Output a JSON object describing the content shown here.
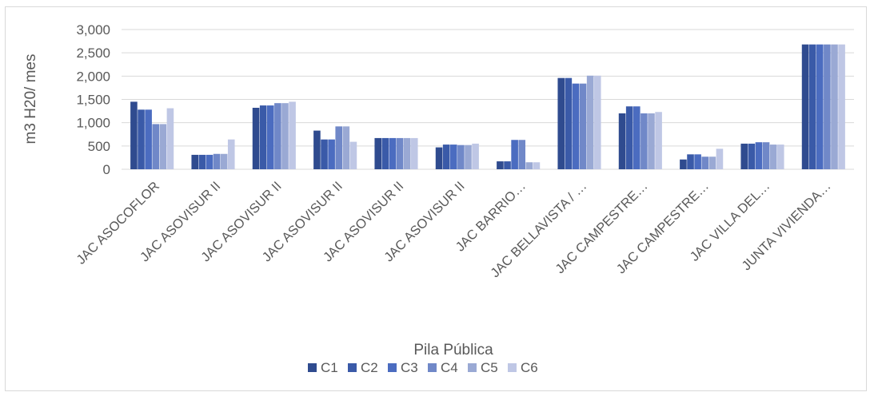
{
  "chart_data": {
    "type": "bar",
    "title": "",
    "xlabel": "Pila Pública",
    "ylabel": "m3 H20/ mes",
    "ylim": [
      0,
      3000
    ],
    "yticks": [
      "0",
      "500",
      "1,000",
      "1,500",
      "2,000",
      "2,500",
      "3,000"
    ],
    "grid": true,
    "legend_position": "bottom",
    "categories": [
      "JAC ASOCOFLOR",
      "JAC ASOVISUR II",
      "JAC ASOVISUR II",
      "JAC ASOVISUR II",
      "JAC ASOVISUR II",
      "JAC ASOVISUR II",
      "JAC BARRIO…",
      "JAC BELLAVISTA / …",
      "JAC CAMPESTRE…",
      "JAC CAMPESTRE…",
      "JAC VILLA DEL…",
      "JUNTA VIVIENDA…"
    ],
    "series": [
      {
        "name": "C1",
        "color": "#2f4b8f",
        "values": [
          1450,
          310,
          1320,
          830,
          670,
          470,
          170,
          1960,
          1200,
          210,
          550,
          2680
        ]
      },
      {
        "name": "C2",
        "color": "#3a5aa8",
        "values": [
          1280,
          310,
          1370,
          640,
          670,
          530,
          170,
          1960,
          1350,
          320,
          550,
          2680
        ]
      },
      {
        "name": "C3",
        "color": "#4b6cc0",
        "values": [
          1280,
          310,
          1370,
          640,
          670,
          530,
          630,
          1840,
          1350,
          320,
          580,
          2680
        ]
      },
      {
        "name": "C4",
        "color": "#7088c8",
        "values": [
          970,
          330,
          1420,
          920,
          670,
          520,
          630,
          1840,
          1200,
          270,
          580,
          2680
        ]
      },
      {
        "name": "C5",
        "color": "#9aa9d4",
        "values": [
          970,
          330,
          1420,
          920,
          670,
          520,
          150,
          2010,
          1200,
          270,
          530,
          2680
        ]
      },
      {
        "name": "C6",
        "color": "#bfc7e5",
        "values": [
          1310,
          640,
          1450,
          590,
          670,
          550,
          150,
          2010,
          1230,
          440,
          530,
          2680
        ]
      }
    ]
  }
}
